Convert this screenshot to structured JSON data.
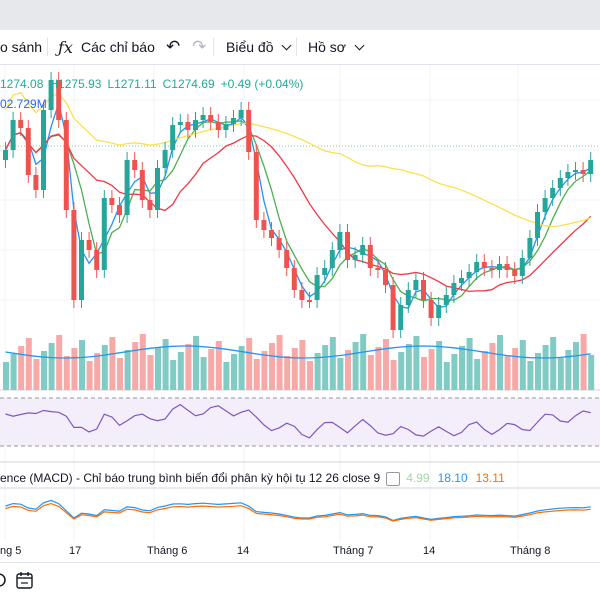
{
  "toolbar": {
    "compare_label": "o sánh",
    "indicators_label": "Các chỉ báo",
    "indicators_icon": "fx-icon",
    "undo_icon": "undo-icon",
    "redo_icon": "redo-icon",
    "chart_label": "Biểu đồ",
    "profile_label": "Hồ sơ"
  },
  "ohlc": {
    "open": "1274.08",
    "high": "H1275.93",
    "low": "L1271.11",
    "close": "C1274.69",
    "change": "+0.49 (+0.04%)"
  },
  "volume_value": "02.729M",
  "macd_legend": {
    "text": "ence (MACD) - Chỉ báo trung bình biến đổi phân kỳ hội tụ 12 26 close 9",
    "hist_value": "4.99",
    "macd_value": "18.10",
    "signal_value": "13.11"
  },
  "x_axis": {
    "labels": [
      "ng 5",
      "17",
      "Tháng 6",
      "14",
      "Tháng 7",
      "14",
      "Tháng 8"
    ]
  },
  "colors": {
    "up": "#26a69a",
    "down": "#ef5350",
    "vol_up": "#80cbc4",
    "vol_down": "#f7a9a7",
    "ma_fast": "#2196f3",
    "ma_mid": "#4caf50",
    "ma_red": "#f23645",
    "ma_yellow": "#fbe14c",
    "rsi": "#7e57c2",
    "macd": "#2196f3",
    "signal": "#ff6d00"
  },
  "bottom_bar": {
    "zoom_icon": "zoom-icon",
    "calendar_icon": "calendar-goto-icon"
  }
}
